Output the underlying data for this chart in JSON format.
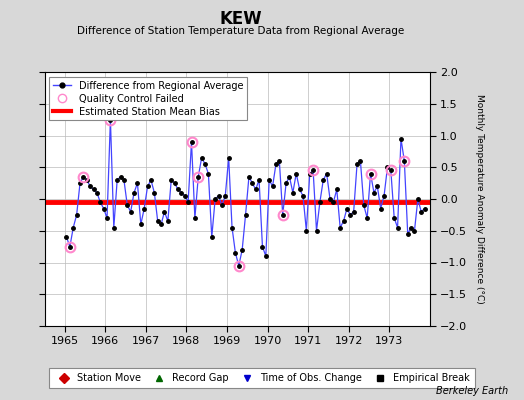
{
  "title": "KEW",
  "subtitle": "Difference of Station Temperature Data from Regional Average",
  "ylabel": "Monthly Temperature Anomaly Difference (°C)",
  "xlim": [
    1964.5,
    1974.0
  ],
  "ylim": [
    -2,
    2
  ],
  "yticks": [
    -2,
    -1.5,
    -1,
    -0.5,
    0,
    0.5,
    1,
    1.5,
    2
  ],
  "xticks": [
    1965,
    1966,
    1967,
    1968,
    1969,
    1970,
    1971,
    1972,
    1973
  ],
  "bias_value": -0.05,
  "bias_color": "#ff0000",
  "line_color": "#4444ff",
  "marker_color": "#000000",
  "qc_color": "#ff88cc",
  "background_color": "#d8d8d8",
  "plot_bg_color": "#ffffff",
  "footer": "Berkeley Earth",
  "monthly_data": [
    {
      "year": 1965,
      "month": 1,
      "value": -0.6,
      "qc": false
    },
    {
      "year": 1965,
      "month": 2,
      "value": -0.75,
      "qc": true
    },
    {
      "year": 1965,
      "month": 3,
      "value": -0.45,
      "qc": false
    },
    {
      "year": 1965,
      "month": 4,
      "value": -0.25,
      "qc": false
    },
    {
      "year": 1965,
      "month": 5,
      "value": 0.25,
      "qc": false
    },
    {
      "year": 1965,
      "month": 6,
      "value": 0.35,
      "qc": true
    },
    {
      "year": 1965,
      "month": 7,
      "value": 0.3,
      "qc": false
    },
    {
      "year": 1965,
      "month": 8,
      "value": 0.2,
      "qc": false
    },
    {
      "year": 1965,
      "month": 9,
      "value": 0.15,
      "qc": false
    },
    {
      "year": 1965,
      "month": 10,
      "value": 0.1,
      "qc": false
    },
    {
      "year": 1965,
      "month": 11,
      "value": -0.05,
      "qc": false
    },
    {
      "year": 1965,
      "month": 12,
      "value": -0.15,
      "qc": false
    },
    {
      "year": 1966,
      "month": 1,
      "value": -0.3,
      "qc": false
    },
    {
      "year": 1966,
      "month": 2,
      "value": 1.25,
      "qc": true
    },
    {
      "year": 1966,
      "month": 3,
      "value": -0.45,
      "qc": false
    },
    {
      "year": 1966,
      "month": 4,
      "value": 0.3,
      "qc": false
    },
    {
      "year": 1966,
      "month": 5,
      "value": 0.35,
      "qc": false
    },
    {
      "year": 1966,
      "month": 6,
      "value": 0.3,
      "qc": false
    },
    {
      "year": 1966,
      "month": 7,
      "value": -0.1,
      "qc": false
    },
    {
      "year": 1966,
      "month": 8,
      "value": -0.2,
      "qc": false
    },
    {
      "year": 1966,
      "month": 9,
      "value": 0.1,
      "qc": false
    },
    {
      "year": 1966,
      "month": 10,
      "value": 0.25,
      "qc": false
    },
    {
      "year": 1966,
      "month": 11,
      "value": -0.4,
      "qc": false
    },
    {
      "year": 1966,
      "month": 12,
      "value": -0.15,
      "qc": false
    },
    {
      "year": 1967,
      "month": 1,
      "value": 0.2,
      "qc": false
    },
    {
      "year": 1967,
      "month": 2,
      "value": 0.3,
      "qc": false
    },
    {
      "year": 1967,
      "month": 3,
      "value": 0.1,
      "qc": false
    },
    {
      "year": 1967,
      "month": 4,
      "value": -0.35,
      "qc": false
    },
    {
      "year": 1967,
      "month": 5,
      "value": -0.4,
      "qc": false
    },
    {
      "year": 1967,
      "month": 6,
      "value": -0.2,
      "qc": false
    },
    {
      "year": 1967,
      "month": 7,
      "value": -0.35,
      "qc": false
    },
    {
      "year": 1967,
      "month": 8,
      "value": 0.3,
      "qc": false
    },
    {
      "year": 1967,
      "month": 9,
      "value": 0.25,
      "qc": false
    },
    {
      "year": 1967,
      "month": 10,
      "value": 0.15,
      "qc": false
    },
    {
      "year": 1967,
      "month": 11,
      "value": 0.1,
      "qc": false
    },
    {
      "year": 1967,
      "month": 12,
      "value": 0.05,
      "qc": false
    },
    {
      "year": 1968,
      "month": 1,
      "value": -0.05,
      "qc": false
    },
    {
      "year": 1968,
      "month": 2,
      "value": 0.9,
      "qc": true
    },
    {
      "year": 1968,
      "month": 3,
      "value": -0.3,
      "qc": false
    },
    {
      "year": 1968,
      "month": 4,
      "value": 0.35,
      "qc": true
    },
    {
      "year": 1968,
      "month": 5,
      "value": 0.65,
      "qc": false
    },
    {
      "year": 1968,
      "month": 6,
      "value": 0.55,
      "qc": false
    },
    {
      "year": 1968,
      "month": 7,
      "value": 0.4,
      "qc": false
    },
    {
      "year": 1968,
      "month": 8,
      "value": -0.6,
      "qc": false
    },
    {
      "year": 1968,
      "month": 9,
      "value": 0.0,
      "qc": false
    },
    {
      "year": 1968,
      "month": 10,
      "value": 0.05,
      "qc": false
    },
    {
      "year": 1968,
      "month": 11,
      "value": -0.1,
      "qc": false
    },
    {
      "year": 1968,
      "month": 12,
      "value": 0.05,
      "qc": false
    },
    {
      "year": 1969,
      "month": 1,
      "value": 0.65,
      "qc": false
    },
    {
      "year": 1969,
      "month": 2,
      "value": -0.45,
      "qc": false
    },
    {
      "year": 1969,
      "month": 3,
      "value": -0.85,
      "qc": false
    },
    {
      "year": 1969,
      "month": 4,
      "value": -1.05,
      "qc": true
    },
    {
      "year": 1969,
      "month": 5,
      "value": -0.8,
      "qc": false
    },
    {
      "year": 1969,
      "month": 6,
      "value": -0.25,
      "qc": false
    },
    {
      "year": 1969,
      "month": 7,
      "value": 0.35,
      "qc": false
    },
    {
      "year": 1969,
      "month": 8,
      "value": 0.25,
      "qc": false
    },
    {
      "year": 1969,
      "month": 9,
      "value": 0.15,
      "qc": false
    },
    {
      "year": 1969,
      "month": 10,
      "value": 0.3,
      "qc": false
    },
    {
      "year": 1969,
      "month": 11,
      "value": -0.75,
      "qc": false
    },
    {
      "year": 1969,
      "month": 12,
      "value": -0.9,
      "qc": false
    },
    {
      "year": 1970,
      "month": 1,
      "value": 0.3,
      "qc": false
    },
    {
      "year": 1970,
      "month": 2,
      "value": 0.2,
      "qc": false
    },
    {
      "year": 1970,
      "month": 3,
      "value": 0.55,
      "qc": false
    },
    {
      "year": 1970,
      "month": 4,
      "value": 0.6,
      "qc": false
    },
    {
      "year": 1970,
      "month": 5,
      "value": -0.25,
      "qc": true
    },
    {
      "year": 1970,
      "month": 6,
      "value": 0.25,
      "qc": false
    },
    {
      "year": 1970,
      "month": 7,
      "value": 0.35,
      "qc": false
    },
    {
      "year": 1970,
      "month": 8,
      "value": 0.1,
      "qc": false
    },
    {
      "year": 1970,
      "month": 9,
      "value": 0.4,
      "qc": false
    },
    {
      "year": 1970,
      "month": 10,
      "value": 0.15,
      "qc": false
    },
    {
      "year": 1970,
      "month": 11,
      "value": 0.05,
      "qc": false
    },
    {
      "year": 1970,
      "month": 12,
      "value": -0.5,
      "qc": false
    },
    {
      "year": 1971,
      "month": 1,
      "value": 0.4,
      "qc": false
    },
    {
      "year": 1971,
      "month": 2,
      "value": 0.45,
      "qc": true
    },
    {
      "year": 1971,
      "month": 3,
      "value": -0.5,
      "qc": false
    },
    {
      "year": 1971,
      "month": 4,
      "value": -0.05,
      "qc": false
    },
    {
      "year": 1971,
      "month": 5,
      "value": 0.3,
      "qc": false
    },
    {
      "year": 1971,
      "month": 6,
      "value": 0.4,
      "qc": false
    },
    {
      "year": 1971,
      "month": 7,
      "value": 0.0,
      "qc": false
    },
    {
      "year": 1971,
      "month": 8,
      "value": -0.05,
      "qc": false
    },
    {
      "year": 1971,
      "month": 9,
      "value": 0.15,
      "qc": false
    },
    {
      "year": 1971,
      "month": 10,
      "value": -0.45,
      "qc": false
    },
    {
      "year": 1971,
      "month": 11,
      "value": -0.35,
      "qc": false
    },
    {
      "year": 1971,
      "month": 12,
      "value": -0.15,
      "qc": false
    },
    {
      "year": 1972,
      "month": 1,
      "value": -0.25,
      "qc": false
    },
    {
      "year": 1972,
      "month": 2,
      "value": -0.2,
      "qc": false
    },
    {
      "year": 1972,
      "month": 3,
      "value": 0.55,
      "qc": false
    },
    {
      "year": 1972,
      "month": 4,
      "value": 0.6,
      "qc": false
    },
    {
      "year": 1972,
      "month": 5,
      "value": -0.1,
      "qc": false
    },
    {
      "year": 1972,
      "month": 6,
      "value": -0.3,
      "qc": false
    },
    {
      "year": 1972,
      "month": 7,
      "value": 0.4,
      "qc": true
    },
    {
      "year": 1972,
      "month": 8,
      "value": 0.1,
      "qc": false
    },
    {
      "year": 1972,
      "month": 9,
      "value": 0.2,
      "qc": false
    },
    {
      "year": 1972,
      "month": 10,
      "value": -0.15,
      "qc": false
    },
    {
      "year": 1972,
      "month": 11,
      "value": 0.05,
      "qc": false
    },
    {
      "year": 1972,
      "month": 12,
      "value": 0.5,
      "qc": false
    },
    {
      "year": 1973,
      "month": 1,
      "value": 0.45,
      "qc": true
    },
    {
      "year": 1973,
      "month": 2,
      "value": -0.3,
      "qc": false
    },
    {
      "year": 1973,
      "month": 3,
      "value": -0.45,
      "qc": false
    },
    {
      "year": 1973,
      "month": 4,
      "value": 0.95,
      "qc": false
    },
    {
      "year": 1973,
      "month": 5,
      "value": 0.6,
      "qc": true
    },
    {
      "year": 1973,
      "month": 6,
      "value": -0.55,
      "qc": false
    },
    {
      "year": 1973,
      "month": 7,
      "value": -0.45,
      "qc": false
    },
    {
      "year": 1973,
      "month": 8,
      "value": -0.5,
      "qc": false
    },
    {
      "year": 1973,
      "month": 9,
      "value": 0.0,
      "qc": false
    },
    {
      "year": 1973,
      "month": 10,
      "value": -0.2,
      "qc": false
    },
    {
      "year": 1973,
      "month": 11,
      "value": -0.15,
      "qc": false
    }
  ]
}
